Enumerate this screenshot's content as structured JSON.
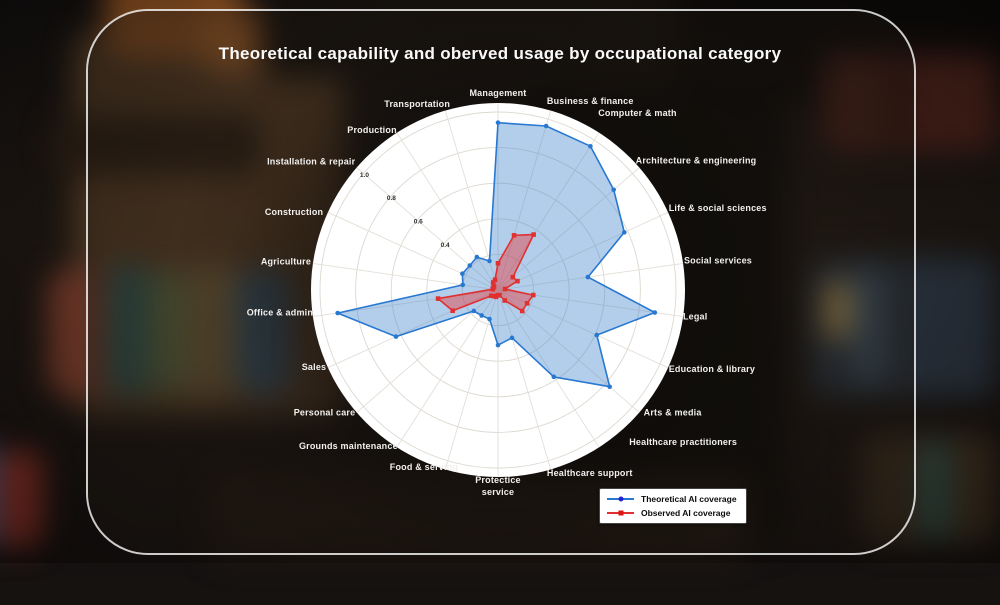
{
  "title": "Theoretical capability and oberved usage by occupational category",
  "chart_data": {
    "type": "radar",
    "title": "Theoretical capability and oberved usage by occupational category",
    "categories": [
      "Management",
      "Business & finance",
      "Computer & math",
      "Architecture & engineering",
      "Life & social sciences",
      "Social services",
      "Legal",
      "Education & library",
      "Arts & media",
      "Healthcare practitioners",
      "Healthcare support",
      "Protectice service",
      "Food & serving",
      "Grounds maintenance",
      "Personal care",
      "Sales",
      "Office & admin",
      "Agriculture",
      "Construction",
      "Installation & repair",
      "Production",
      "Transportation"
    ],
    "series": [
      {
        "name": "Theoretical AI coverage",
        "marker": "circle",
        "color": "#2878d0",
        "fill": "rgba(66,133,205,0.40)",
        "values": [
          0.94,
          0.96,
          0.96,
          0.86,
          0.78,
          0.51,
          0.89,
          0.61,
          0.83,
          0.58,
          0.28,
          0.31,
          0.17,
          0.17,
          0.18,
          0.63,
          0.91,
          0.2,
          0.22,
          0.21,
          0.22,
          0.17
        ]
      },
      {
        "name": "Observed AI coverage",
        "marker": "square",
        "color": "#e03030",
        "fill": "rgba(230,60,60,0.45)",
        "values": [
          0.15,
          0.32,
          0.37,
          0.11,
          0.12,
          0.04,
          0.2,
          0.18,
          0.18,
          0.07,
          0.03,
          0.03,
          0.04,
          0.04,
          0.05,
          0.28,
          0.34,
          0.03,
          0.03,
          0.03,
          0.05,
          0.06
        ]
      }
    ],
    "radial_axis": {
      "ring_values": [
        0.2,
        0.4,
        0.6,
        0.8,
        1.0
      ],
      "visible_tick_labels": [
        "0.4",
        "0.6",
        "0.8",
        "1.0"
      ],
      "rmax": 1.0
    },
    "grid": true,
    "legend_position": "bottom-right"
  },
  "legend": {
    "items": [
      {
        "label": "Theoretical AI coverage"
      },
      {
        "label": "Observed AI coverage"
      }
    ]
  },
  "colors": {
    "theoretical": "#2878d0",
    "observed": "#e03030",
    "grid": "#ddd8d0",
    "plot_background": "#ffffff",
    "label_text": "#f2f0ee"
  }
}
